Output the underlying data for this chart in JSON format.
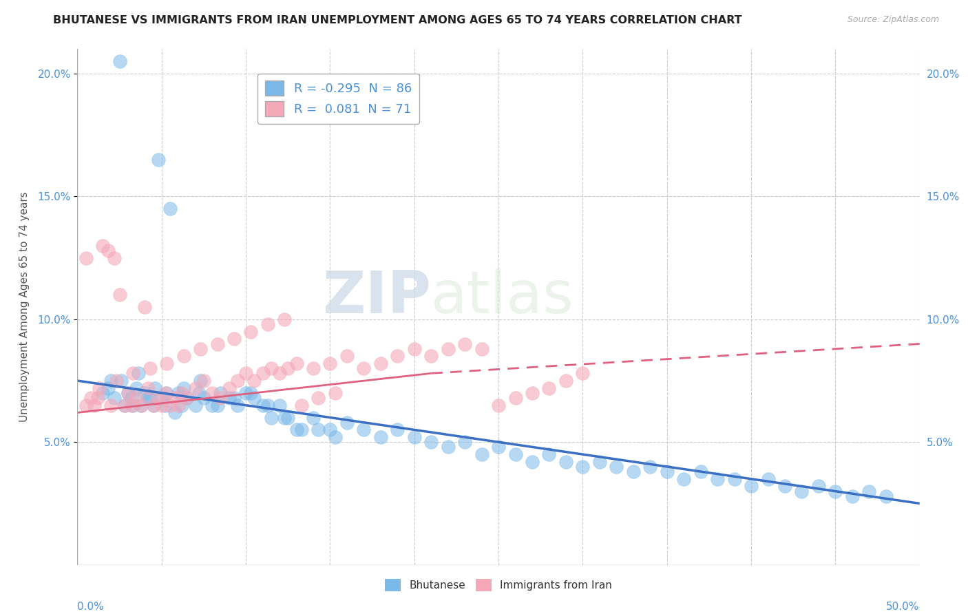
{
  "title": "BHUTANESE VS IMMIGRANTS FROM IRAN UNEMPLOYMENT AMONG AGES 65 TO 74 YEARS CORRELATION CHART",
  "source": "Source: ZipAtlas.com",
  "ylabel": "Unemployment Among Ages 65 to 74 years",
  "xlim": [
    0,
    50
  ],
  "ylim": [
    0,
    21
  ],
  "bg_color": "#ffffff",
  "grid_color": "#cccccc",
  "blue_color": "#7ab8e8",
  "pink_color": "#f4a8b8",
  "blue_line_color": "#3a6fc4",
  "pink_line_color": "#e06080",
  "legend_R_blue": "-0.295",
  "legend_N_blue": "86",
  "legend_R_pink": "0.081",
  "legend_N_pink": "71",
  "watermark_zip": "ZIP",
  "watermark_atlas": "atlas",
  "blue_scatter_x": [
    2.5,
    1.5,
    1.8,
    2.0,
    2.2,
    2.8,
    3.0,
    3.2,
    3.5,
    3.8,
    4.0,
    4.2,
    4.5,
    4.8,
    5.0,
    5.2,
    5.5,
    5.8,
    6.0,
    6.2,
    6.5,
    7.0,
    7.2,
    7.5,
    8.0,
    8.5,
    9.0,
    9.5,
    10.0,
    10.5,
    11.0,
    11.5,
    12.0,
    12.5,
    13.0,
    14.0,
    15.0,
    16.0,
    17.0,
    18.0,
    19.0,
    20.0,
    21.0,
    22.0,
    23.0,
    24.0,
    25.0,
    26.0,
    27.0,
    28.0,
    29.0,
    30.0,
    31.0,
    32.0,
    33.0,
    34.0,
    35.0,
    36.0,
    37.0,
    38.0,
    39.0,
    40.0,
    41.0,
    42.0,
    43.0,
    44.0,
    45.0,
    46.0,
    47.0,
    48.0,
    3.3,
    4.3,
    5.3,
    6.3,
    7.3,
    8.3,
    9.3,
    10.3,
    11.3,
    12.3,
    13.3,
    14.3,
    15.3,
    2.6,
    3.6,
    4.6
  ],
  "blue_scatter_y": [
    20.5,
    7.0,
    7.2,
    7.5,
    6.8,
    6.5,
    7.0,
    6.8,
    7.2,
    6.5,
    7.0,
    6.8,
    6.5,
    16.5,
    6.8,
    6.5,
    14.5,
    6.2,
    7.0,
    6.5,
    6.8,
    6.5,
    7.0,
    6.8,
    6.5,
    7.0,
    6.8,
    6.5,
    7.0,
    6.8,
    6.5,
    6.0,
    6.5,
    6.0,
    5.5,
    6.0,
    5.5,
    5.8,
    5.5,
    5.2,
    5.5,
    5.2,
    5.0,
    4.8,
    5.0,
    4.5,
    4.8,
    4.5,
    4.2,
    4.5,
    4.2,
    4.0,
    4.2,
    4.0,
    3.8,
    4.0,
    3.8,
    3.5,
    3.8,
    3.5,
    3.5,
    3.2,
    3.5,
    3.2,
    3.0,
    3.2,
    3.0,
    2.8,
    3.0,
    2.8,
    6.5,
    6.8,
    7.0,
    7.2,
    7.5,
    6.5,
    6.8,
    7.0,
    6.5,
    6.0,
    5.5,
    5.5,
    5.2,
    7.5,
    7.8,
    7.2
  ],
  "pink_scatter_x": [
    0.5,
    0.5,
    0.8,
    1.0,
    1.2,
    1.5,
    1.8,
    2.0,
    2.2,
    2.5,
    2.8,
    3.0,
    3.2,
    3.5,
    3.8,
    4.0,
    4.2,
    4.5,
    4.8,
    5.0,
    5.2,
    5.5,
    5.8,
    6.0,
    6.2,
    6.5,
    7.0,
    7.5,
    8.0,
    8.5,
    9.0,
    9.5,
    10.0,
    10.5,
    11.0,
    11.5,
    12.0,
    12.5,
    13.0,
    14.0,
    15.0,
    16.0,
    17.0,
    18.0,
    19.0,
    20.0,
    21.0,
    22.0,
    23.0,
    24.0,
    25.0,
    26.0,
    27.0,
    28.0,
    29.0,
    30.0,
    1.3,
    2.3,
    3.3,
    4.3,
    5.3,
    6.3,
    7.3,
    8.3,
    9.3,
    10.3,
    11.3,
    12.3,
    13.3,
    14.3,
    15.3
  ],
  "pink_scatter_y": [
    6.5,
    12.5,
    6.8,
    6.5,
    6.8,
    13.0,
    12.8,
    6.5,
    12.5,
    11.0,
    6.5,
    7.0,
    6.5,
    6.8,
    6.5,
    10.5,
    7.2,
    6.5,
    6.8,
    6.5,
    7.0,
    6.5,
    6.8,
    6.5,
    7.0,
    6.8,
    7.2,
    7.5,
    7.0,
    6.8,
    7.2,
    7.5,
    7.8,
    7.5,
    7.8,
    8.0,
    7.8,
    8.0,
    8.2,
    8.0,
    8.2,
    8.5,
    8.0,
    8.2,
    8.5,
    8.8,
    8.5,
    8.8,
    9.0,
    8.8,
    6.5,
    6.8,
    7.0,
    7.2,
    7.5,
    7.8,
    7.2,
    7.5,
    7.8,
    8.0,
    8.2,
    8.5,
    8.8,
    9.0,
    9.2,
    9.5,
    9.8,
    10.0,
    6.5,
    6.8,
    7.0
  ],
  "blue_trend_x0": 0,
  "blue_trend_y0": 7.5,
  "blue_trend_x1": 50,
  "blue_trend_y1": 2.5,
  "pink_solid_x0": 0,
  "pink_solid_y0": 6.2,
  "pink_solid_x1": 21,
  "pink_solid_y1": 7.8,
  "pink_dash_x0": 21,
  "pink_dash_y0": 7.8,
  "pink_dash_x1": 50,
  "pink_dash_y1": 9.0
}
